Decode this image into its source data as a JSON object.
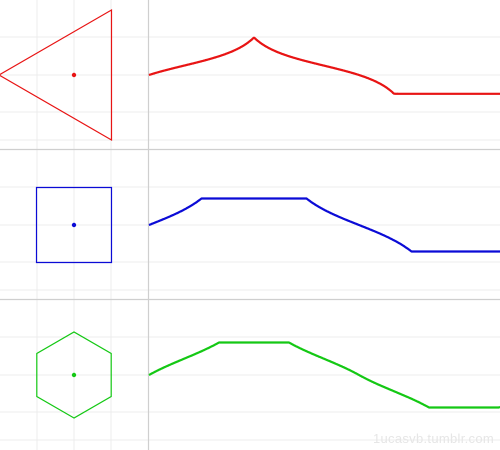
{
  "credit": "1ucasvb.tumblr.com",
  "panels": [
    {
      "shape": "triangle",
      "sides": 3,
      "color": "#e81414",
      "faded_color": "#f6b4b4"
    },
    {
      "shape": "square",
      "sides": 4,
      "color": "#0b0bd6",
      "faded_color": "#b4b4f0"
    },
    {
      "shape": "hexagon",
      "sides": 6,
      "color": "#14c814",
      "faded_color": "#b9ecb9"
    }
  ]
}
